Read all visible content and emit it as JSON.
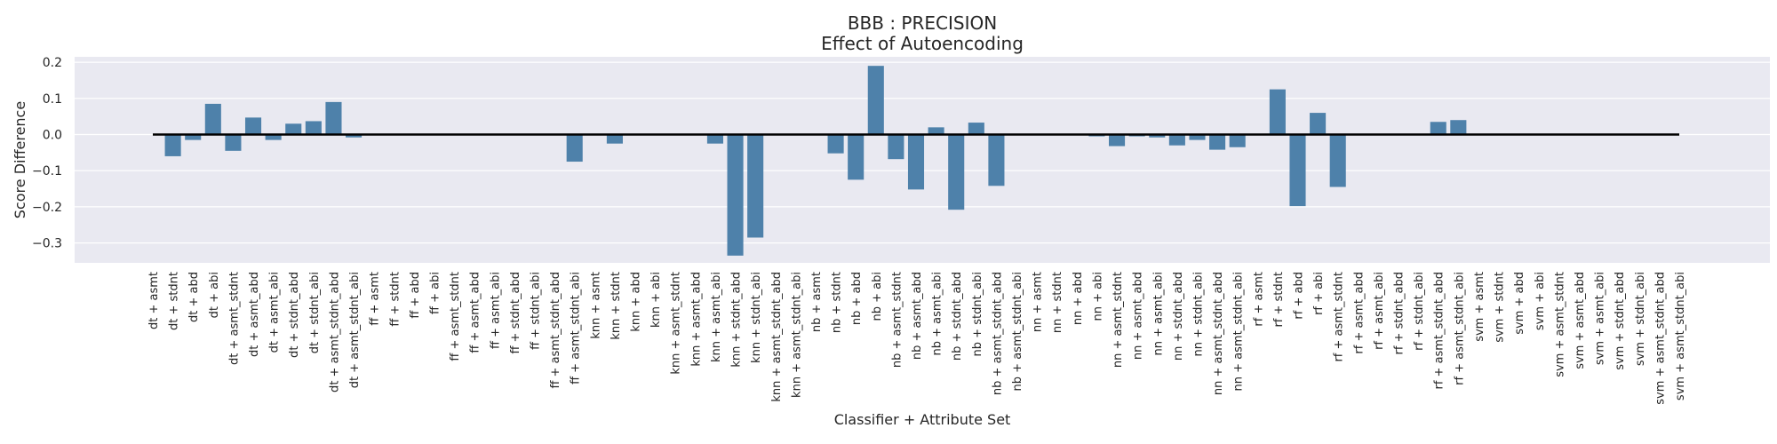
{
  "chart_data": {
    "type": "bar",
    "title": "BBB : PRECISION",
    "subtitle": "Effect of Autoencoding",
    "xlabel": "Classifier + Attribute Set",
    "ylabel": "Score Difference",
    "ylim": [
      -0.355,
      0.215
    ],
    "yticks": [
      0.2,
      0.1,
      0.0,
      -0.1,
      -0.2,
      -0.3
    ],
    "ytick_labels": [
      "0.2",
      "0.1",
      "0.0",
      "−0.1",
      "−0.2",
      "−0.3"
    ],
    "grid": true,
    "zero_line": true,
    "bar_color": "#4e81aa",
    "background_color": "#e9e9f1",
    "categories": [
      "dt + asmt",
      "dt + stdnt",
      "dt + abd",
      "dt + abi",
      "dt + asmt_stdnt",
      "dt + asmt_abd",
      "dt + asmt_abi",
      "dt + stdnt_abd",
      "dt + stdnt_abi",
      "dt + asmt_stdnt_abd",
      "dt + asmt_stdnt_abi",
      "ff + asmt",
      "ff + stdnt",
      "ff + abd",
      "ff + abi",
      "ff + asmt_stdnt",
      "ff + asmt_abd",
      "ff + asmt_abi",
      "ff + stdnt_abd",
      "ff + stdnt_abi",
      "ff + asmt_stdnt_abd",
      "ff + asmt_stdnt_abi",
      "knn + asmt",
      "knn + stdnt",
      "knn + abd",
      "knn + abi",
      "knn + asmt_stdnt",
      "knn + asmt_abd",
      "knn + asmt_abi",
      "knn + stdnt_abd",
      "knn + stdnt_abi",
      "knn + asmt_stdnt_abd",
      "knn + asmt_stdnt_abi",
      "nb + asmt",
      "nb + stdnt",
      "nb + abd",
      "nb + abi",
      "nb + asmt_stdnt",
      "nb + asmt_abd",
      "nb + asmt_abi",
      "nb + stdnt_abd",
      "nb + stdnt_abi",
      "nb + asmt_stdnt_abd",
      "nb + asmt_stdnt_abi",
      "nn + asmt",
      "nn + stdnt",
      "nn + abd",
      "nn + abi",
      "nn + asmt_stdnt",
      "nn + asmt_abd",
      "nn + asmt_abi",
      "nn + stdnt_abd",
      "nn + stdnt_abi",
      "nn + asmt_stdnt_abd",
      "nn + asmt_stdnt_abi",
      "rf + asmt",
      "rf + stdnt",
      "rf + abd",
      "rf + abi",
      "rf + asmt_stdnt",
      "rf + asmt_abd",
      "rf + asmt_abi",
      "rf + stdnt_abd",
      "rf + stdnt_abi",
      "rf + asmt_stdnt_abd",
      "rf + asmt_stdnt_abi",
      "svm + asmt",
      "svm + stdnt",
      "svm + abd",
      "svm + abi",
      "svm + asmt_stdnt",
      "svm + asmt_abd",
      "svm + asmt_abi",
      "svm + stdnt_abd",
      "svm + stdnt_abi",
      "svm + asmt_stdnt_abd",
      "svm + asmt_stdnt_abi"
    ],
    "values": [
      0.0,
      -0.06,
      -0.015,
      0.085,
      -0.045,
      0.047,
      -0.015,
      0.03,
      0.037,
      0.09,
      -0.008,
      0.0,
      0.0,
      0.0,
      0.0,
      0.0,
      0.0,
      0.0,
      0.0,
      0.0,
      0.0,
      -0.075,
      0.0,
      -0.025,
      0.0,
      0.0,
      0.0,
      0.0,
      -0.025,
      -0.335,
      -0.285,
      0.0,
      0.0,
      0.0,
      -0.052,
      -0.125,
      0.19,
      -0.068,
      -0.152,
      0.02,
      -0.208,
      0.033,
      -0.142,
      0.0,
      0.0,
      0.0,
      0.0,
      -0.005,
      -0.032,
      -0.005,
      -0.008,
      -0.03,
      -0.015,
      -0.042,
      -0.035,
      0.0,
      0.125,
      -0.198,
      0.06,
      -0.145,
      0.0,
      0.0,
      0.0,
      0.0,
      0.035,
      0.04,
      0.0,
      0.0,
      0.0,
      0.0,
      0.0,
      0.0,
      0.0,
      0.0,
      0.0,
      0.0,
      0.0
    ]
  }
}
